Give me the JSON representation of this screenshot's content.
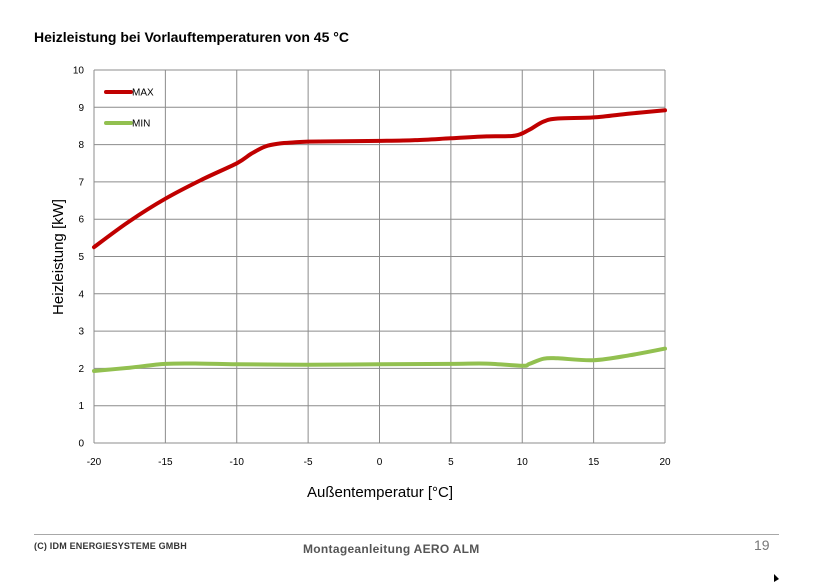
{
  "page": {
    "footer_left": "(C) IDM ENERGIESYSTEME GMBH",
    "footer_center": "Montageanleitung AERO ALM",
    "page_number": "19"
  },
  "chart_data": {
    "type": "line",
    "title": "Heizleistung bei Vorlauftemperaturen von 45 °C",
    "xlabel": "Außentemperatur [°C]",
    "ylabel": "Heizleistung [kW]",
    "xlim": [
      -20,
      20
    ],
    "ylim": [
      0,
      10
    ],
    "xticks": [
      -20,
      -15,
      -10,
      -5,
      0,
      5,
      10,
      15,
      20
    ],
    "yticks": [
      0,
      1,
      2,
      3,
      4,
      5,
      6,
      7,
      8,
      9,
      10
    ],
    "grid": true,
    "legend_position": "top-left",
    "series": [
      {
        "name": "MAX",
        "color": "#c00000",
        "x": [
          -20,
          -17.5,
          -15,
          -12.5,
          -10,
          -9,
          -8,
          -7,
          -6,
          -5,
          -2.5,
          0,
          2.5,
          5,
          7.5,
          9.5,
          10.5,
          11.5,
          12.5,
          15,
          17.5,
          20
        ],
        "y": [
          5.25,
          5.95,
          6.55,
          7.05,
          7.5,
          7.75,
          7.95,
          8.03,
          8.06,
          8.08,
          8.09,
          8.1,
          8.12,
          8.17,
          8.22,
          8.24,
          8.4,
          8.62,
          8.7,
          8.73,
          8.83,
          8.92
        ]
      },
      {
        "name": "MIN",
        "color": "#92c050",
        "x": [
          -20,
          -17.5,
          -15,
          -12.5,
          -10,
          -5,
          0,
          5,
          7.5,
          10,
          10.5,
          11.5,
          12.5,
          15,
          17.5,
          20
        ],
        "y": [
          1.93,
          2.02,
          2.12,
          2.13,
          2.11,
          2.1,
          2.11,
          2.12,
          2.13,
          2.07,
          2.12,
          2.26,
          2.27,
          2.22,
          2.35,
          2.53
        ]
      }
    ]
  }
}
